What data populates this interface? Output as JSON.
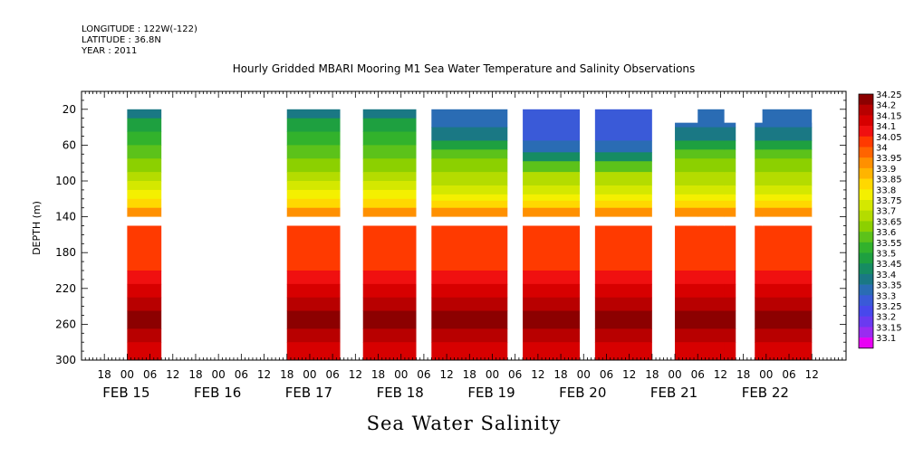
{
  "header": {
    "longitude": "LONGITUDE : 122W(-122)",
    "latitude": "LATITUDE : 36.8N",
    "year": "YEAR : 2011",
    "title": "Hourly Gridded MBARI Mooring M1 Sea Water Temperature and Salinity Observations"
  },
  "footer": {
    "variable_name": "Sea Water Salinity"
  },
  "chart_data": {
    "type": "heatmap",
    "title": "Hourly Gridded MBARI Mooring M1 Sea Water Temperature and Salinity Observations",
    "xlabel": "",
    "ylabel": "DEPTH (m)",
    "x_unit": "hours since 2011-02-15 00:00 (timeline of the plot)",
    "xlim_hours": [
      -12,
      189
    ],
    "ylim": [
      300,
      0
    ],
    "y_ticks": [
      20,
      60,
      100,
      140,
      180,
      220,
      260,
      300
    ],
    "x_hour_ticks": [
      {
        "h": -6,
        "label": "18"
      },
      {
        "h": 0,
        "label": "00"
      },
      {
        "h": 6,
        "label": "06"
      },
      {
        "h": 12,
        "label": "12"
      },
      {
        "h": 18,
        "label": "18"
      },
      {
        "h": 24,
        "label": "00"
      },
      {
        "h": 30,
        "label": "06"
      },
      {
        "h": 36,
        "label": "12"
      },
      {
        "h": 42,
        "label": "18"
      },
      {
        "h": 48,
        "label": "00"
      },
      {
        "h": 54,
        "label": "06"
      },
      {
        "h": 60,
        "label": "12"
      },
      {
        "h": 66,
        "label": "18"
      },
      {
        "h": 72,
        "label": "00"
      },
      {
        "h": 78,
        "label": "06"
      },
      {
        "h": 84,
        "label": "12"
      },
      {
        "h": 90,
        "label": "18"
      },
      {
        "h": 96,
        "label": "00"
      },
      {
        "h": 102,
        "label": "06"
      },
      {
        "h": 108,
        "label": "12"
      },
      {
        "h": 114,
        "label": "18"
      },
      {
        "h": 120,
        "label": "00"
      },
      {
        "h": 126,
        "label": "06"
      },
      {
        "h": 132,
        "label": "12"
      },
      {
        "h": 138,
        "label": "18"
      },
      {
        "h": 144,
        "label": "00"
      },
      {
        "h": 150,
        "label": "06"
      },
      {
        "h": 156,
        "label": "12"
      },
      {
        "h": 162,
        "label": "18"
      },
      {
        "h": 168,
        "label": "00"
      },
      {
        "h": 174,
        "label": "06"
      },
      {
        "h": 180,
        "label": "12"
      }
    ],
    "x_date_labels": [
      {
        "h": 0,
        "label": "FEB 15"
      },
      {
        "h": 24,
        "label": "FEB 16"
      },
      {
        "h": 48,
        "label": "FEB 17"
      },
      {
        "h": 72,
        "label": "FEB 18"
      },
      {
        "h": 96,
        "label": "FEB 19"
      },
      {
        "h": 120,
        "label": "FEB 20"
      },
      {
        "h": 144,
        "label": "FEB 21"
      },
      {
        "h": 168,
        "label": "FEB 22"
      }
    ],
    "colorbar": {
      "levels": [
        "34.25",
        "34.2",
        "34.15",
        "34.1",
        "34.05",
        "34",
        "33.95",
        "33.9",
        "33.85",
        "33.8",
        "33.75",
        "33.7",
        "33.65",
        "33.6",
        "33.55",
        "33.5",
        "33.45",
        "33.4",
        "33.35",
        "33.3",
        "33.25",
        "33.2",
        "33.15",
        "33.1"
      ],
      "colors": [
        "#8c0000",
        "#b80000",
        "#d70000",
        "#f01010",
        "#ff3a00",
        "#ff6400",
        "#ff9000",
        "#ffb400",
        "#ffd800",
        "#f4f000",
        "#d4e800",
        "#b4dc00",
        "#8cd000",
        "#5cc21a",
        "#32b22c",
        "#1ea040",
        "#168c62",
        "#1a7884",
        "#2a6cb4",
        "#3a5ad8",
        "#4848ec",
        "#6a3af0",
        "#9a2cf0",
        "#e800f4"
      ]
    },
    "segments": [
      {
        "start": 0,
        "end": 9,
        "top": 20,
        "profile": "A"
      },
      {
        "start": 42,
        "end": 56,
        "top": 20,
        "profile": "A"
      },
      {
        "start": 62,
        "end": 76,
        "top": 20,
        "profile": "A"
      },
      {
        "start": 80,
        "end": 100,
        "top": 20,
        "profile": "B"
      },
      {
        "start": 104,
        "end": 119,
        "top": 20,
        "profile": "C"
      },
      {
        "start": 123,
        "end": 138,
        "top": 20,
        "profile": "C"
      },
      {
        "start": 144,
        "end": 160,
        "top": 35,
        "profile": "B",
        "notch": {
          "start": 150,
          "end": 157,
          "top": 20
        }
      },
      {
        "start": 165,
        "end": 180,
        "top": 35,
        "profile": "B",
        "notch": {
          "start": 167,
          "end": 180,
          "top": 20
        }
      }
    ],
    "profiles": {
      "A": [
        [
          20,
          "33.4"
        ],
        [
          30,
          "33.5"
        ],
        [
          45,
          "33.55"
        ],
        [
          60,
          "33.6"
        ],
        [
          75,
          "33.65"
        ],
        [
          90,
          "33.7"
        ],
        [
          100,
          "33.75"
        ],
        [
          110,
          "33.8"
        ],
        [
          120,
          "33.85"
        ],
        [
          130,
          "33.95"
        ],
        [
          140,
          "34.0"
        ],
        [
          150,
          "34.05"
        ],
        [
          200,
          "34.1"
        ],
        [
          215,
          "34.15"
        ],
        [
          230,
          "34.2"
        ],
        [
          245,
          "34.25"
        ],
        [
          265,
          "34.2"
        ],
        [
          280,
          "34.15"
        ],
        [
          300,
          "34.1"
        ]
      ],
      "B": [
        [
          20,
          "33.35"
        ],
        [
          40,
          "33.4"
        ],
        [
          55,
          "33.5"
        ],
        [
          65,
          "33.6"
        ],
        [
          75,
          "33.65"
        ],
        [
          90,
          "33.7"
        ],
        [
          105,
          "33.75"
        ],
        [
          115,
          "33.8"
        ],
        [
          122,
          "33.85"
        ],
        [
          130,
          "33.95"
        ],
        [
          140,
          "34.0"
        ],
        [
          150,
          "34.05"
        ],
        [
          200,
          "34.1"
        ],
        [
          215,
          "34.15"
        ],
        [
          230,
          "34.2"
        ],
        [
          245,
          "34.25"
        ],
        [
          265,
          "34.2"
        ],
        [
          280,
          "34.15"
        ],
        [
          300,
          "34.1"
        ]
      ],
      "C": [
        [
          20,
          "33.3"
        ],
        [
          55,
          "33.35"
        ],
        [
          68,
          "33.45"
        ],
        [
          78,
          "33.6"
        ],
        [
          90,
          "33.7"
        ],
        [
          105,
          "33.75"
        ],
        [
          115,
          "33.8"
        ],
        [
          122,
          "33.85"
        ],
        [
          130,
          "33.95"
        ],
        [
          140,
          "34.0"
        ],
        [
          150,
          "34.05"
        ],
        [
          200,
          "34.1"
        ],
        [
          215,
          "34.15"
        ],
        [
          230,
          "34.2"
        ],
        [
          245,
          "34.25"
        ],
        [
          265,
          "34.2"
        ],
        [
          280,
          "34.15"
        ],
        [
          300,
          "34.1"
        ]
      ]
    }
  }
}
